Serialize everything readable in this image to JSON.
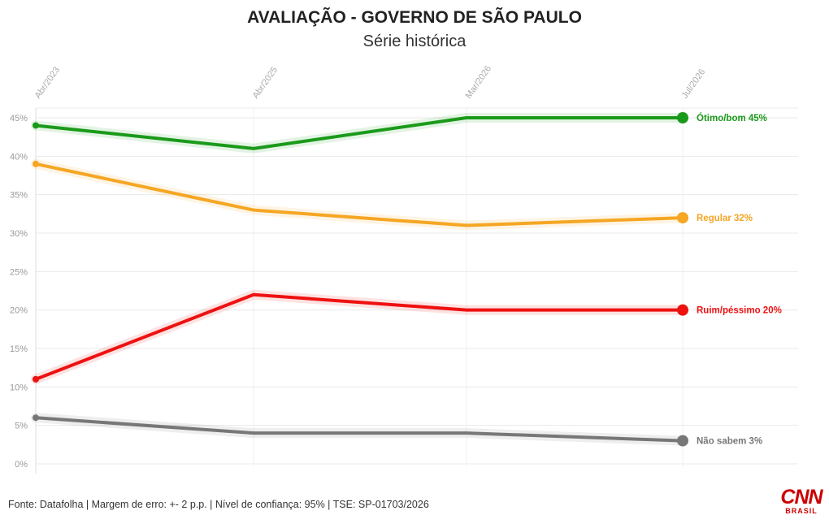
{
  "chart_data": {
    "type": "line",
    "title": "AVALIAÇÃO - GOVERNO DE SÃO PAULO",
    "subtitle": "Série histórica",
    "x": [
      "Abr/2023",
      "Abr/2025",
      "Mar/2026",
      "Jul/2026"
    ],
    "yticks": [
      "0%",
      "5%",
      "10%",
      "15%",
      "20%",
      "25%",
      "30%",
      "35%",
      "40%",
      "45%"
    ],
    "ylim": [
      0,
      46
    ],
    "grid": true,
    "series": [
      {
        "name": "Ótimo/bom",
        "values": [
          44,
          41,
          45,
          45
        ],
        "color": "#1a9a1a",
        "end_label": "Ótimo/bom 45%"
      },
      {
        "name": "Regular",
        "values": [
          39,
          33,
          31,
          32
        ],
        "color": "#f5a623",
        "end_label": "Regular 32%"
      },
      {
        "name": "Ruim/péssimo",
        "values": [
          11,
          22,
          20,
          20
        ],
        "color": "#ee1111",
        "end_label": "Ruim/péssimo 20%"
      },
      {
        "name": "Não sabem",
        "values": [
          6,
          4,
          4,
          3
        ],
        "color": "#777777",
        "end_label": "Não sabem 3%"
      }
    ]
  },
  "footer": {
    "source": "Fonte: Datafolha | Margem de erro: +- 2 p.p. | Nível de confiança: 95% | TSE: SP-01703/2026"
  },
  "logo": {
    "main": "CNN",
    "sub": "BRASIL"
  }
}
